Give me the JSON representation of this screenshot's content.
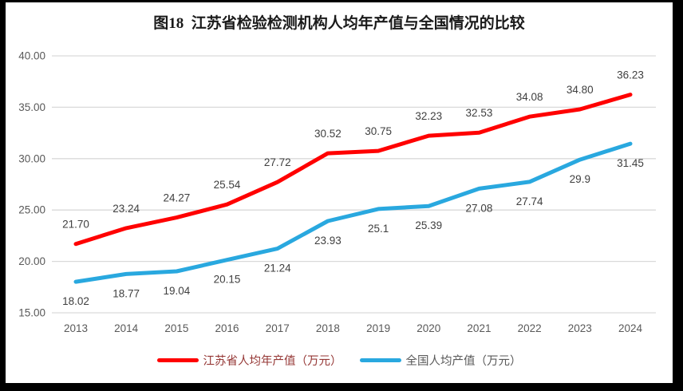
{
  "title": "图18  江苏省检验检测机构人均年产值与全国情况的比较",
  "colors": {
    "jiangsu_line": "#FF0000",
    "national_line": "#29A8DF",
    "gridline": "#D9D9D9",
    "axis_text": "#595959",
    "data_label_text": "#3F3F3F",
    "legend_jiangsu_text": "#953735",
    "legend_national_text": "#595959",
    "frame": "#000000",
    "panel_background": "#FFFFFF",
    "title_text": "#1A1A1A"
  },
  "chart_data": {
    "type": "line",
    "title": "图18  江苏省检验检测机构人均年产值与全国情况的比较",
    "categories": [
      "2013",
      "2014",
      "2015",
      "2016",
      "2017",
      "2018",
      "2019",
      "2020",
      "2021",
      "2022",
      "2023",
      "2024"
    ],
    "series": [
      {
        "key": "jiangsu",
        "name": "江苏省人均年产值（万元）",
        "values": [
          21.7,
          23.24,
          24.27,
          25.54,
          27.72,
          30.52,
          30.75,
          32.23,
          32.53,
          34.08,
          34.8,
          36.23
        ],
        "labels": [
          "21.70",
          "23.24",
          "24.27",
          "25.54",
          "27.72",
          "30.52",
          "30.75",
          "32.23",
          "32.53",
          "34.08",
          "34.80",
          "36.23"
        ],
        "label_position": "above"
      },
      {
        "key": "national",
        "name": "全国人均产值（万元）",
        "values": [
          18.02,
          18.77,
          19.04,
          20.15,
          21.24,
          23.93,
          25.1,
          25.39,
          27.08,
          27.74,
          29.9,
          31.45
        ],
        "labels": [
          "18.02",
          "18.77",
          "19.04",
          "20.15",
          "21.24",
          "23.93",
          "25.1",
          "25.39",
          "27.08",
          "27.74",
          "29.9",
          "31.45"
        ],
        "label_position": "below"
      }
    ],
    "xlabel": "",
    "ylabel": "",
    "ylim": [
      15,
      40
    ],
    "ytick_step": 5,
    "ytick_labels": [
      "15.00",
      "20.00",
      "25.00",
      "30.00",
      "35.00",
      "40.00"
    ],
    "grid": true,
    "legend_position": "bottom"
  }
}
